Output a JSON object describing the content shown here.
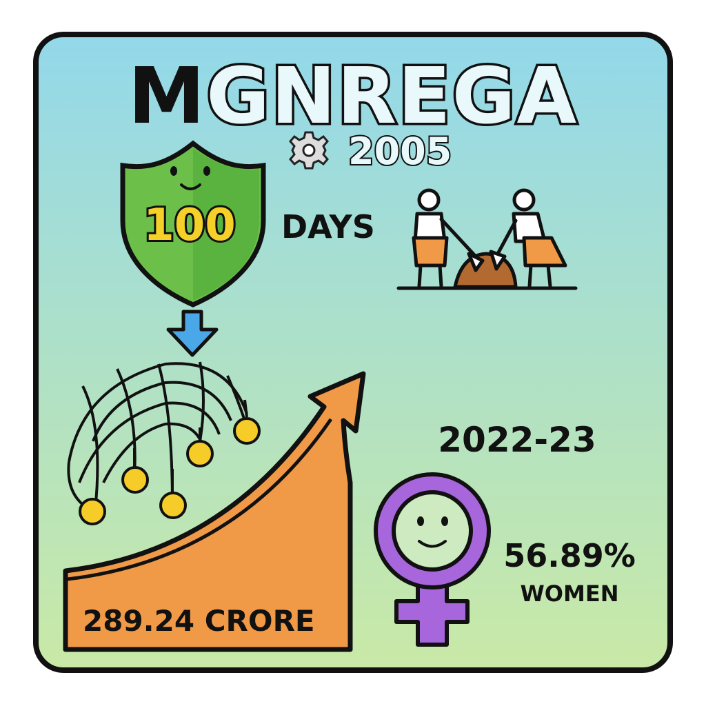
{
  "title": {
    "first_letter": "M",
    "rest": "GNREGA"
  },
  "year": "2005",
  "shield": {
    "number": "100",
    "label": "DAYS"
  },
  "expenditure": "289.24 CRORE",
  "period": "2022-23",
  "women": {
    "percent": "56.89%",
    "label": "WOMEN"
  },
  "icons": [
    "gear-icon",
    "shield-icon",
    "workers-icon",
    "down-arrow-icon",
    "safety-net-icon",
    "growth-arrow-icon",
    "female-symbol-icon"
  ],
  "colors": {
    "shield": "#6cc04a",
    "number": "#f5d028",
    "arrow_down": "#4aa8e8",
    "growth": "#f09a48",
    "female": "#a866dc",
    "coin": "#f5cc28",
    "bg_top": "#93d8ea",
    "bg_bottom": "#c9e9a6"
  }
}
